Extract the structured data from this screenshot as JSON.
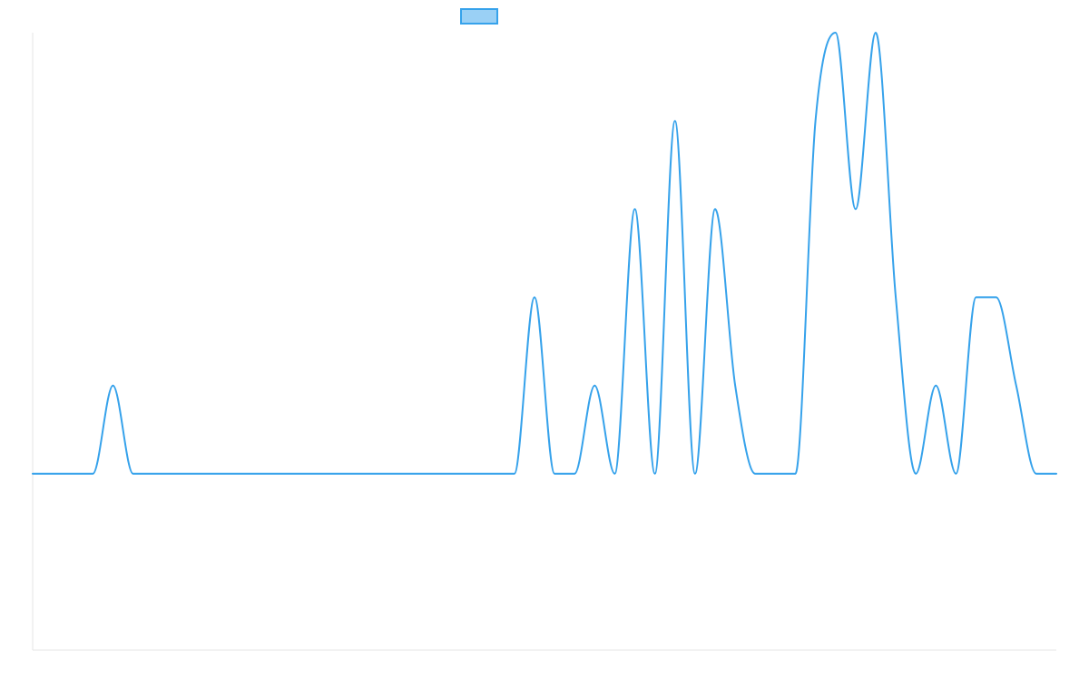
{
  "chart_data": {
    "type": "line",
    "title": "",
    "xlabel": "",
    "ylabel": "",
    "grid": false,
    "legend_position": "top-center",
    "ylim": [
      -2,
      5
    ],
    "series": [
      {
        "name": "",
        "color": "#36a2eb",
        "fill": "#9ad0f5",
        "x": [
          0,
          1,
          2,
          3,
          4,
          5,
          6,
          7,
          8,
          9,
          10,
          11,
          12,
          13,
          14,
          15,
          16,
          17,
          18,
          19,
          20,
          21,
          22,
          23,
          24,
          25,
          26,
          27,
          28,
          29,
          30,
          31,
          32,
          33,
          34,
          35,
          36,
          37,
          38,
          39,
          40,
          41,
          42,
          43,
          44,
          45,
          46,
          47,
          48,
          49,
          50,
          51
        ],
        "values": [
          0,
          0,
          0,
          0,
          1,
          0,
          0,
          0,
          0,
          0,
          0,
          0,
          0,
          0,
          0,
          0,
          0,
          0,
          0,
          0,
          0,
          0,
          0,
          0,
          0,
          2,
          0,
          0,
          1,
          0,
          3,
          0,
          4,
          0,
          3,
          1,
          0,
          0,
          0,
          4,
          5,
          3,
          5,
          2,
          0,
          1,
          0,
          2,
          2,
          1,
          0,
          0
        ]
      }
    ]
  }
}
